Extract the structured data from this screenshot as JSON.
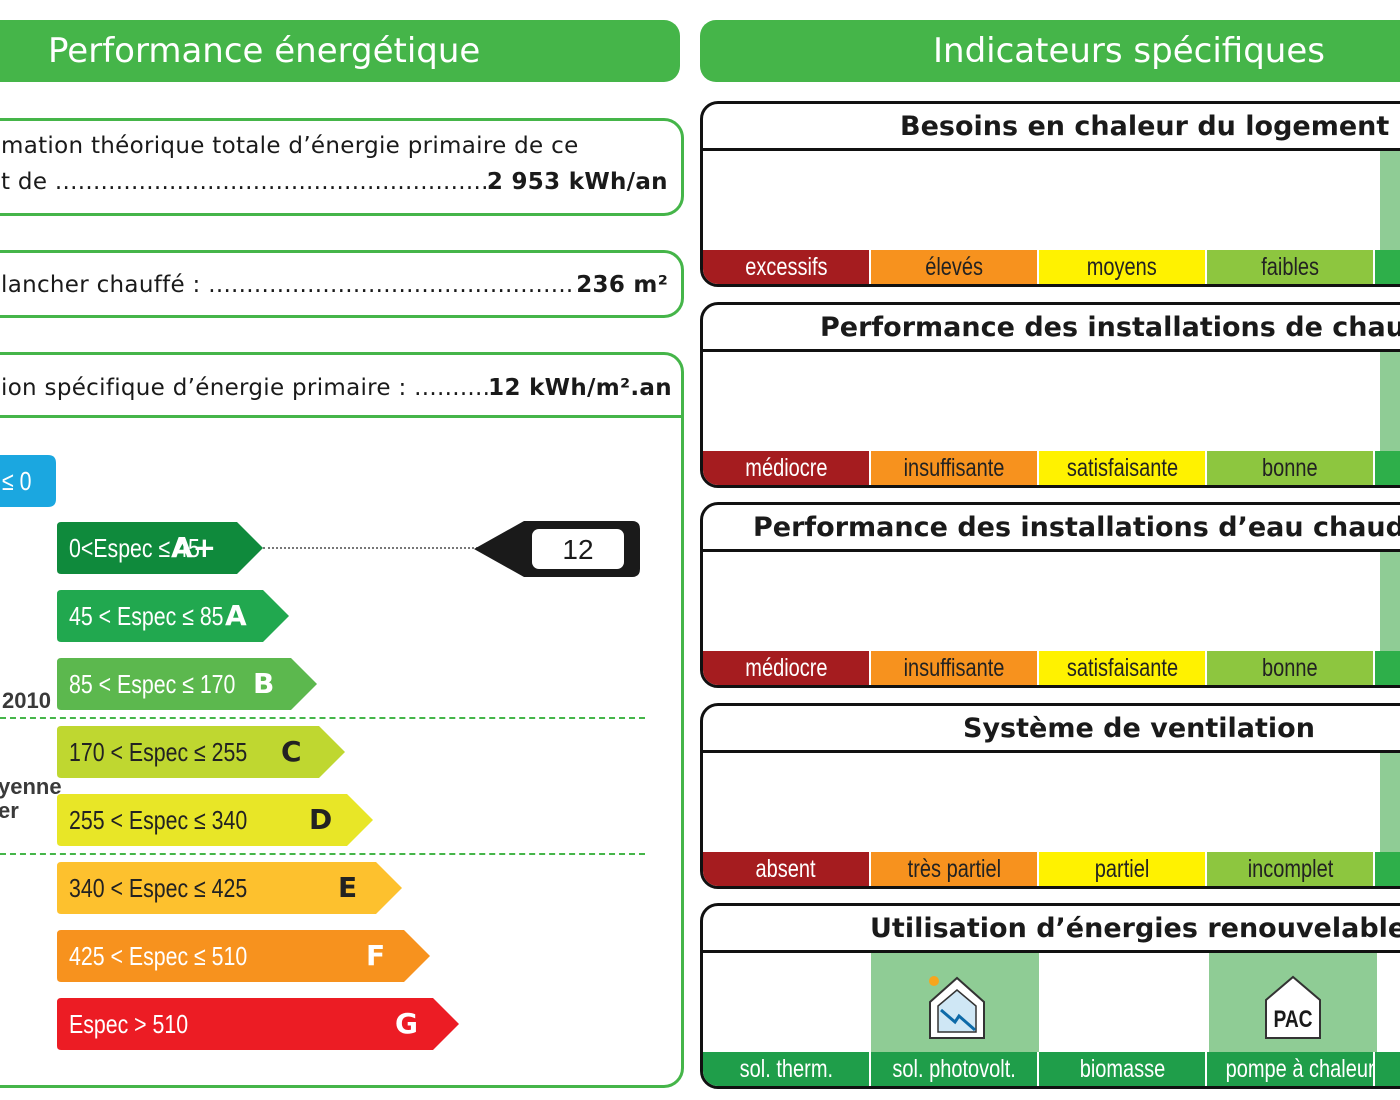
{
  "left_header": "Performance énergétique",
  "right_header": "Indicateurs spécifiques",
  "consumption_box": {
    "line1": "mation théorique totale d’énergie primaire de ce",
    "line2_prefix": "t de ",
    "value": "2 953 kWh/an"
  },
  "surface_box": {
    "prefix": "lancher chauffé : ",
    "value": "236 m²"
  },
  "specific_box": {
    "prefix": "ion spécifique d’énergie primaire : ",
    "value": "12 kWh/m².an"
  },
  "side_labels": {
    "year": "2010",
    "moyenne": "yenne",
    "moyenne2": "er"
  },
  "classes": [
    {
      "range": "≤ 0",
      "letter": "",
      "color": "#1ba7e0"
    },
    {
      "range": "0<Espec ≤ 45",
      "letter": "A+",
      "color": "#0f8a3c"
    },
    {
      "range": "45 < Espec ≤ 85",
      "letter": "A",
      "color": "#21a84f"
    },
    {
      "range": "85 < Espec ≤ 170",
      "letter": "B",
      "color": "#5cb84e"
    },
    {
      "range": "170 < Espec ≤ 255",
      "letter": "C",
      "color": "#bfd730"
    },
    {
      "range": "255 < Espec ≤ 340",
      "letter": "D",
      "color": "#e8e627"
    },
    {
      "range": "340 < Espec ≤ 425",
      "letter": "E",
      "color": "#fdc12e"
    },
    {
      "range": "425 < Espec ≤ 510",
      "letter": "F",
      "color": "#f7921e"
    },
    {
      "range": "Espec > 510",
      "letter": "G",
      "color": "#ec1c24"
    }
  ],
  "indicator_value": "12",
  "panels": [
    {
      "title": "Besoins en chaleur du logement",
      "segments": [
        "excessifs",
        "élevés",
        "moyens",
        "faibles"
      ]
    },
    {
      "title": "Performance des installations de chauffag",
      "segments": [
        "médiocre",
        "insuffisante",
        "satisfaisante",
        "bonne"
      ]
    },
    {
      "title": "Performance des installations d’eau chaude sa",
      "segments": [
        "médiocre",
        "insuffisante",
        "satisfaisante",
        "bonne"
      ]
    },
    {
      "title": "Système de ventilation",
      "segments": [
        "absent",
        "très partiel",
        "partiel",
        "incomplet"
      ]
    },
    {
      "title": "Utilisation d’énergies renouvelables",
      "segments": [
        "sol. therm.",
        "sol. photovolt.",
        "biomasse",
        "pompe à chaleur"
      ]
    }
  ],
  "pac_label": "PAC",
  "colors": {
    "green": "#45b549",
    "seg_red": "#a51c1f",
    "seg_orange": "#f7921e",
    "seg_yellow": "#fff200",
    "seg_lightgreen": "#8dc63f",
    "seg_green": "#2eaf4a",
    "renew_green": "#1f9e4a",
    "renew_light": "#8fcc95"
  }
}
